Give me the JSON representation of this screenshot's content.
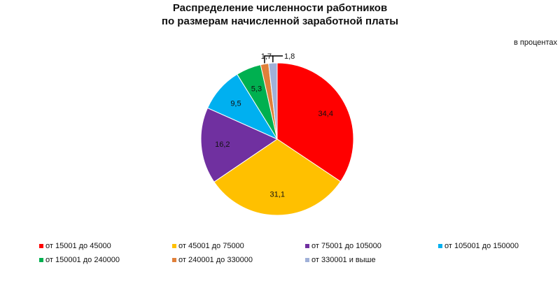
{
  "chart_data": {
    "type": "pie",
    "title": [
      "Распределение численности работников",
      "по размерам начисленной заработной платы"
    ],
    "unit_label": "в процентах",
    "categories": [
      "от 15001 до 45000",
      "от 45001 до 75000",
      "от 75001 до 105000",
      "от 105001 до 150000",
      "от 150001 до 240000",
      "от 240001 до 330000",
      "от 330001 и выше"
    ],
    "values": [
      34.4,
      31.1,
      16.2,
      9.5,
      5.3,
      1.7,
      1.8
    ],
    "data_labels": [
      "34,4",
      "31,1",
      "16,2",
      "9,5",
      "5,3",
      "1,7",
      "1,8"
    ],
    "colors": [
      "#ff0000",
      "#ffc000",
      "#7030a0",
      "#00b0f0",
      "#00b050",
      "#e0803a",
      "#a0b0d8"
    ],
    "start": "top",
    "direction": "clockwise",
    "legend_position": "bottom"
  }
}
